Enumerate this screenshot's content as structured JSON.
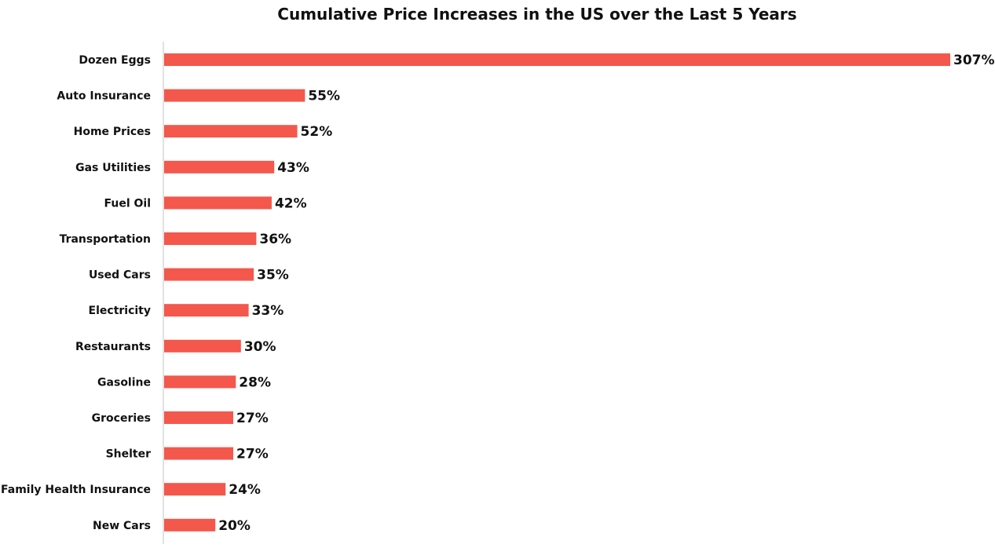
{
  "chart_data": {
    "type": "bar",
    "orientation": "horizontal",
    "title": "Cumulative Price Increases in the US over the Last 5 Years",
    "xlabel": "",
    "ylabel": "",
    "categories": [
      "Dozen Eggs",
      "Auto Insurance",
      "Home Prices",
      "Gas Utilities",
      "Fuel Oil",
      "Transportation",
      "Used Cars",
      "Electricity",
      "Restaurants",
      "Gasoline",
      "Groceries",
      "Shelter",
      "Family Health Insurance",
      "New Cars"
    ],
    "values": [
      307,
      55,
      52,
      43,
      42,
      36,
      35,
      33,
      30,
      28,
      27,
      27,
      24,
      20
    ],
    "value_labels": [
      "307%",
      "55%",
      "52%",
      "43%",
      "42%",
      "36%",
      "35%",
      "33%",
      "30%",
      "28%",
      "27%",
      "27%",
      "24%",
      "20%"
    ],
    "unit": "%",
    "xlim": [
      0,
      307
    ],
    "grid": false,
    "legend": "none",
    "bar_color": "#f4574c",
    "axis_color": "#d9d9d9"
  }
}
